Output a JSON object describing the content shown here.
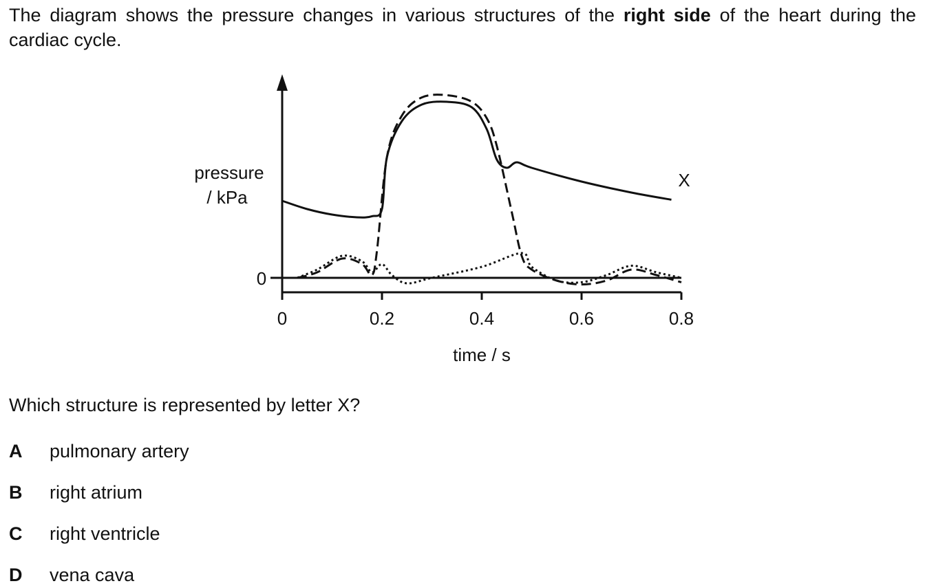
{
  "question": {
    "intro_before": "The diagram shows the pressure changes in various structures of the ",
    "intro_bold": "right side",
    "intro_after": " of the heart during the cardiac cycle.",
    "prompt": "Which structure is represented by letter X?",
    "options": [
      {
        "letter": "A",
        "text": "pulmonary artery"
      },
      {
        "letter": "B",
        "text": "right atrium"
      },
      {
        "letter": "C",
        "text": "right ventricle"
      },
      {
        "letter": "D",
        "text": "vena cava"
      }
    ]
  },
  "chart_data": {
    "type": "line",
    "title": "",
    "ylabel_line1": "pressure",
    "ylabel_line2": "/ kPa",
    "xlabel": "time / s",
    "xlim": [
      0,
      0.8
    ],
    "x_ticks": [
      "0",
      "0.2",
      "0.4",
      "0.6",
      "0.8"
    ],
    "y_ticks": [
      "0"
    ],
    "grid": false,
    "line_label": "X",
    "series": [
      {
        "style": "solid",
        "points": [
          [
            0,
            1.4
          ],
          [
            0.05,
            1.25
          ],
          [
            0.1,
            1.15
          ],
          [
            0.15,
            1.1
          ],
          [
            0.18,
            1.12
          ],
          [
            0.2,
            1.25
          ],
          [
            0.21,
            2.2
          ],
          [
            0.24,
            2.85
          ],
          [
            0.28,
            3.15
          ],
          [
            0.33,
            3.2
          ],
          [
            0.38,
            3.1
          ],
          [
            0.41,
            2.7
          ],
          [
            0.43,
            2.15
          ],
          [
            0.45,
            2.0
          ],
          [
            0.47,
            2.1
          ],
          [
            0.5,
            2.0
          ],
          [
            0.6,
            1.75
          ],
          [
            0.7,
            1.55
          ],
          [
            0.78,
            1.42
          ]
        ]
      },
      {
        "style": "dashed",
        "points": [
          [
            0.03,
            0
          ],
          [
            0.07,
            0.1
          ],
          [
            0.12,
            0.35
          ],
          [
            0.16,
            0.25
          ],
          [
            0.18,
            0.05
          ],
          [
            0.19,
            0.5
          ],
          [
            0.21,
            2.2
          ],
          [
            0.24,
            2.95
          ],
          [
            0.28,
            3.28
          ],
          [
            0.33,
            3.32
          ],
          [
            0.38,
            3.2
          ],
          [
            0.41,
            2.9
          ],
          [
            0.43,
            2.4
          ],
          [
            0.46,
            1.2
          ],
          [
            0.48,
            0.4
          ],
          [
            0.5,
            0.15
          ],
          [
            0.55,
            -0.05
          ],
          [
            0.6,
            -0.12
          ],
          [
            0.65,
            -0.05
          ],
          [
            0.7,
            0.15
          ],
          [
            0.75,
            0.05
          ],
          [
            0.8,
            -0.08
          ]
        ]
      },
      {
        "style": "dotted",
        "points": [
          [
            0.03,
            0
          ],
          [
            0.07,
            0.15
          ],
          [
            0.12,
            0.4
          ],
          [
            0.16,
            0.3
          ],
          [
            0.18,
            0.1
          ],
          [
            0.2,
            0.25
          ],
          [
            0.22,
            0.05
          ],
          [
            0.25,
            -0.1
          ],
          [
            0.3,
            0
          ],
          [
            0.4,
            0.2
          ],
          [
            0.48,
            0.45
          ],
          [
            0.5,
            0.2
          ],
          [
            0.55,
            -0.05
          ],
          [
            0.6,
            -0.08
          ],
          [
            0.65,
            0.05
          ],
          [
            0.7,
            0.22
          ],
          [
            0.75,
            0.1
          ],
          [
            0.8,
            0
          ]
        ]
      }
    ]
  }
}
